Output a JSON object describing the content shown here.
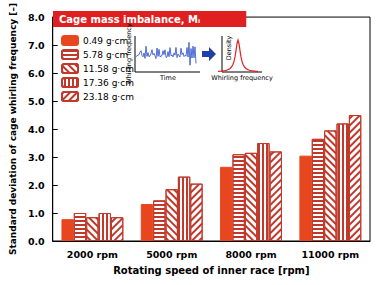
{
  "chart_data": {
    "type": "bar",
    "title": "Cage mass imbalance, Mᵢ",
    "x_label": "Rotating speed of inner race [rpm]",
    "y_label": "Standard deviation of cage whirling frequency [–]",
    "categories": [
      "2000 rpm",
      "5000 rpm",
      "8000 rpm",
      "11000 rpm"
    ],
    "series": [
      {
        "name": "0.49 g·cm",
        "color": "#e8461e",
        "marker": "solid",
        "values": [
          0.78,
          1.32,
          2.65,
          3.05
        ]
      },
      {
        "name": "5.78 g·cm",
        "color": "#c0392b",
        "marker": "horizontal",
        "values": [
          1.0,
          1.45,
          3.1,
          3.65
        ]
      },
      {
        "name": "11.58 g·cm",
        "color": "#c0392b",
        "marker": "diagonal",
        "values": [
          0.85,
          1.85,
          3.15,
          3.95
        ]
      },
      {
        "name": "17.36 g·cm",
        "color": "#c0392b",
        "marker": "vertical",
        "values": [
          1.0,
          2.3,
          3.5,
          4.2
        ]
      },
      {
        "name": "23.18 g·cm",
        "color": "#c0392b",
        "marker": "backdiagonal",
        "values": [
          0.85,
          2.05,
          3.2,
          4.5
        ]
      }
    ],
    "ylim": [
      0,
      8
    ],
    "yticks": [
      {
        "value": 0,
        "label": "0.0"
      },
      {
        "value": 1,
        "label": "1.0"
      },
      {
        "value": 2,
        "label": "2.0"
      },
      {
        "value": 3,
        "label": "3.0"
      },
      {
        "value": 4,
        "label": "4.0"
      },
      {
        "value": 5,
        "label": "5.0"
      },
      {
        "value": 6,
        "label": "6.0"
      },
      {
        "value": 7,
        "label": "7.0"
      },
      {
        "value": 8,
        "label": "8.0"
      }
    ],
    "legend": "upper left",
    "grid": false,
    "annotations": [
      "Whirling frequency",
      "Time",
      "Density",
      "Whirling frequency"
    ]
  }
}
